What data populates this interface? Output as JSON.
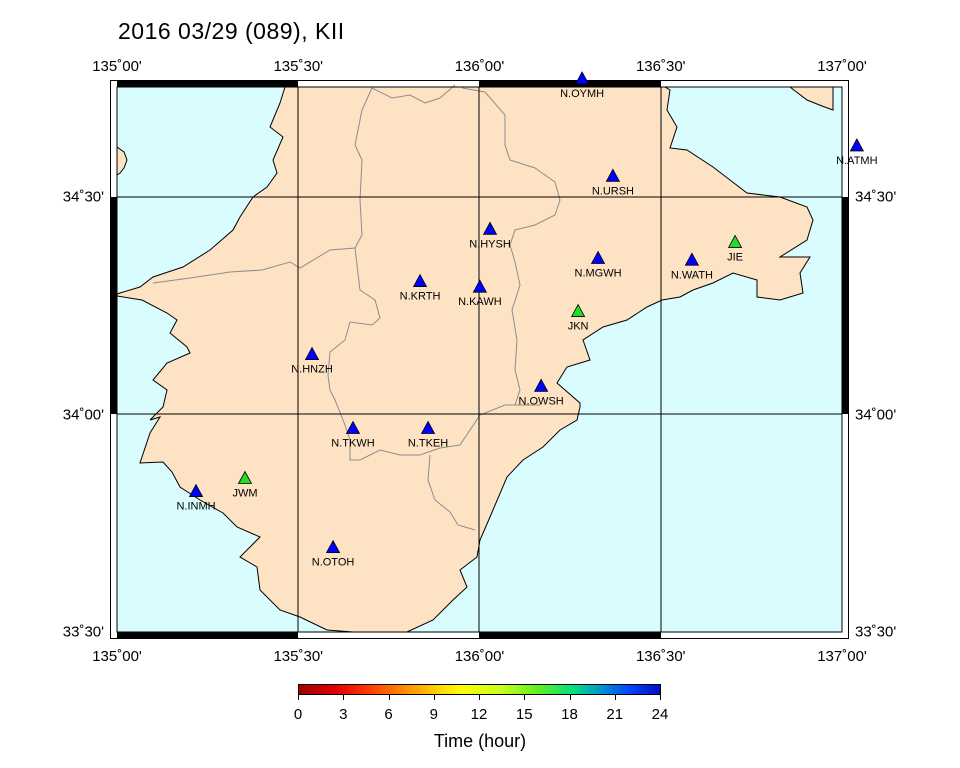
{
  "title": "2016 03/29 (089), KII",
  "map": {
    "lon_range": [
      135.0,
      137.0
    ],
    "lat_range": [
      33.5,
      34.7535
    ],
    "colors": {
      "land": "#fde3c4",
      "sea": "#d9fcfe",
      "coast": "#000000",
      "border": "#8c8c8c"
    },
    "lon_ticks": [
      "135˚00'",
      "135˚30'",
      "136˚00'",
      "136˚30'",
      "137˚00'"
    ],
    "lat_ticks": [
      "34˚30'",
      "34˚00'",
      "33˚30'"
    ]
  },
  "stations": [
    {
      "name": "N.OYMH",
      "lon": 136.283,
      "lat": 34.772,
      "color": "#0000ff"
    },
    {
      "name": "N.URSH",
      "lon": 136.368,
      "lat": 34.548,
      "color": "#0000ff"
    },
    {
      "name": "N.ATMH",
      "lon": 137.041,
      "lat": 34.618,
      "color": "#0000ff"
    },
    {
      "name": "N.HYSH",
      "lon": 136.029,
      "lat": 34.426,
      "color": "#0000ff"
    },
    {
      "name": "N.MGWH",
      "lon": 136.327,
      "lat": 34.359,
      "color": "#0000ff"
    },
    {
      "name": "N.WATH",
      "lon": 136.586,
      "lat": 34.355,
      "color": "#0000ff"
    },
    {
      "name": "JIE",
      "lon": 136.705,
      "lat": 34.396,
      "color": "#22dd22"
    },
    {
      "name": "N.KRTH",
      "lon": 135.836,
      "lat": 34.306,
      "color": "#0000ff"
    },
    {
      "name": "N.KAWH",
      "lon": 136.001,
      "lat": 34.293,
      "color": "#0000ff"
    },
    {
      "name": "JKN",
      "lon": 136.272,
      "lat": 34.237,
      "color": "#22dd22"
    },
    {
      "name": "N.HNZH",
      "lon": 135.538,
      "lat": 34.138,
      "color": "#0000ff"
    },
    {
      "name": "N.OWSH",
      "lon": 136.17,
      "lat": 34.065,
      "color": "#0000ff"
    },
    {
      "name": "N.TKWH",
      "lon": 135.651,
      "lat": 33.968,
      "color": "#0000ff"
    },
    {
      "name": "N.TKEH",
      "lon": 135.858,
      "lat": 33.968,
      "color": "#0000ff"
    },
    {
      "name": "JWM",
      "lon": 135.353,
      "lat": 33.853,
      "color": "#22dd22"
    },
    {
      "name": "N.INMH",
      "lon": 135.218,
      "lat": 33.823,
      "color": "#0000ff"
    },
    {
      "name": "N.OTOH",
      "lon": 135.596,
      "lat": 33.694,
      "color": "#0000ff"
    }
  ],
  "colorbar": {
    "title": "Time (hour)",
    "range": [
      0,
      24
    ],
    "ticks": [
      "0",
      "3",
      "6",
      "9",
      "12",
      "15",
      "18",
      "21",
      "24"
    ]
  }
}
